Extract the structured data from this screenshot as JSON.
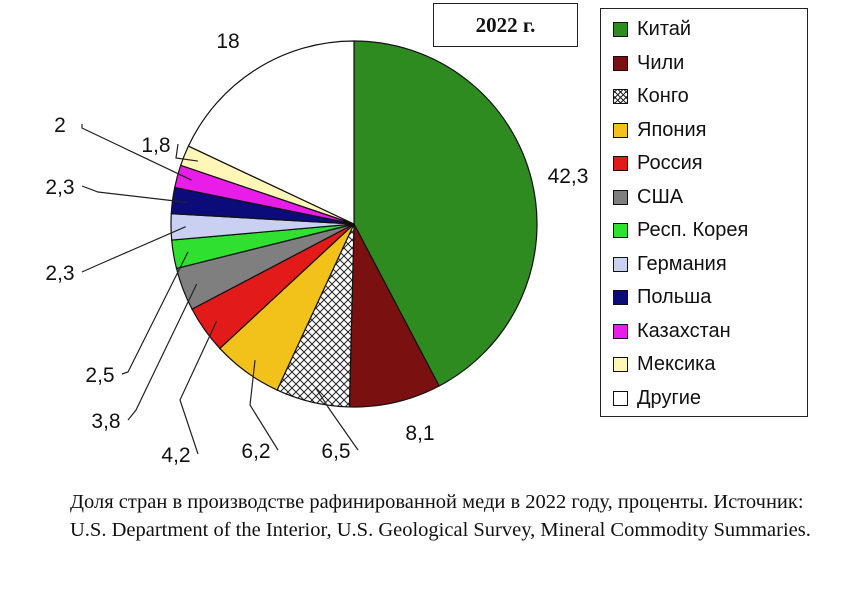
{
  "chart_data": {
    "type": "pie",
    "title": "2022 г.",
    "slices": [
      {
        "label": "Китай",
        "value": 42.3,
        "value_label": "42,3",
        "color": "#2e8b1f"
      },
      {
        "label": "Чили",
        "value": 8.1,
        "value_label": "8,1",
        "color": "#7b1010"
      },
      {
        "label": "Конго",
        "value": 6.5,
        "value_label": "6,5",
        "color": "pattern-crosshatch"
      },
      {
        "label": "Япония",
        "value": 6.2,
        "value_label": "6,2",
        "color": "#f2c21b"
      },
      {
        "label": "Россия",
        "value": 4.2,
        "value_label": "4,2",
        "color": "#e31a1a"
      },
      {
        "label": "США",
        "value": 3.8,
        "value_label": "3,8",
        "color": "#7f7f7f"
      },
      {
        "label": "Респ. Корея",
        "value": 2.5,
        "value_label": "2,5",
        "color": "#2fe02f"
      },
      {
        "label": "Германия",
        "value": 2.3,
        "value_label": "2,3",
        "color": "#c9d0f2"
      },
      {
        "label": "Польша",
        "value": 2.3,
        "value_label": "2,3",
        "color": "#0b0b7a"
      },
      {
        "label": "Казахстан",
        "value": 2.0,
        "value_label": "2",
        "color": "#e81ee8"
      },
      {
        "label": "Мексика",
        "value": 1.8,
        "value_label": "1,8",
        "color": "#fff6b8"
      },
      {
        "label": "Другие",
        "value": 18,
        "value_label": "18",
        "color": "#ffffff"
      }
    ],
    "legend_position": "right"
  },
  "caption": "Доля стран в производстве рафинированной меди в 2022 году, проценты. Источник: U.S. Department of the Interior, U.S. Geological Survey, Mineral Commodity Summaries."
}
